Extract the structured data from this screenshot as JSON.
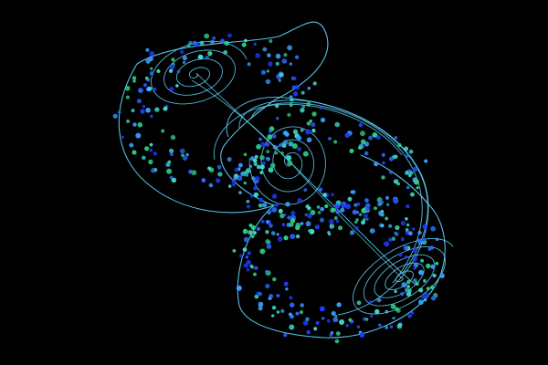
{
  "scene": {
    "subject": "strange-attractor",
    "background_color": "#000000",
    "trajectory_color": "#5fd7ff",
    "particle_colors": [
      "#1e3cff",
      "#2a6bff",
      "#3aa0ff",
      "#40e0d0",
      "#2fd08a"
    ],
    "particle_count": 520
  }
}
